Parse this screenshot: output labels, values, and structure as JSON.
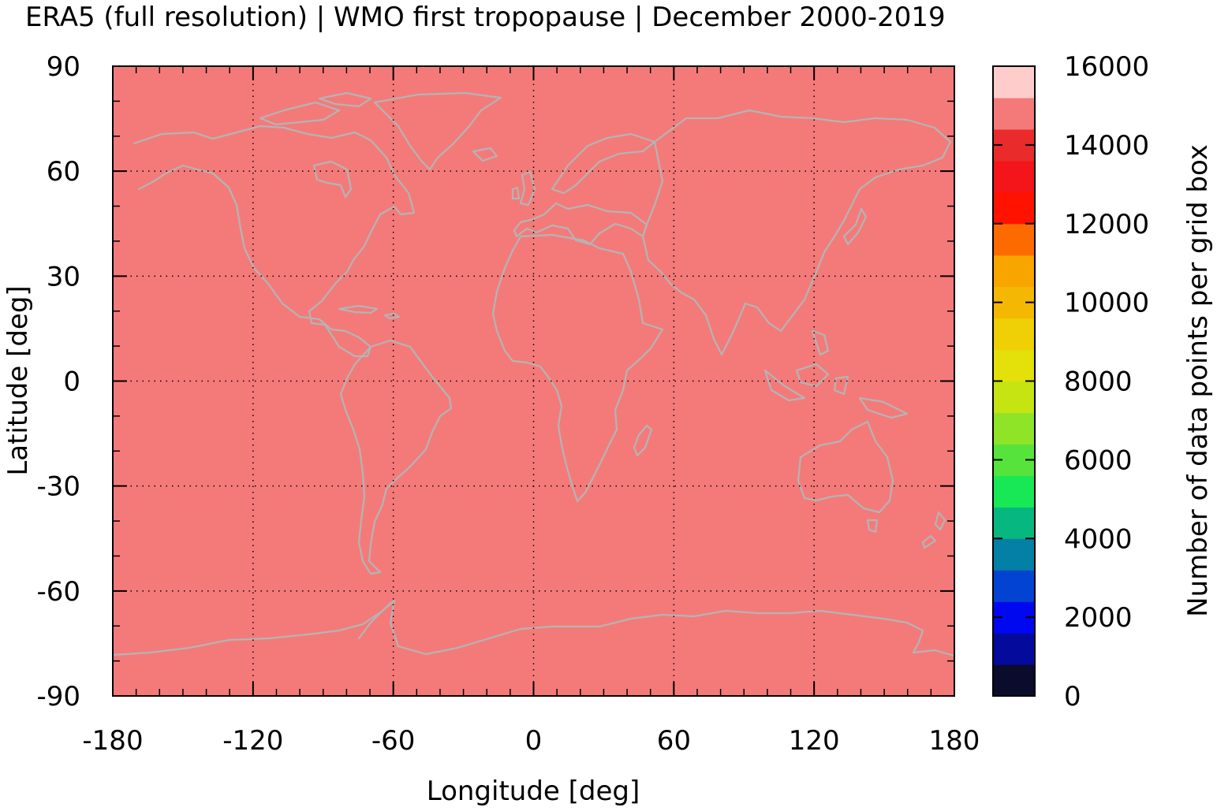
{
  "chart_data": {
    "type": "heatmap",
    "title": "ERA5 (full resolution) | WMO first tropopause | December 2000-2019",
    "xlabel": "Longitude [deg]",
    "ylabel": "Latitude [deg]",
    "xlim": [
      -180,
      180
    ],
    "ylim": [
      -90,
      90
    ],
    "x_ticks": [
      -180,
      -120,
      -60,
      0,
      60,
      120,
      180
    ],
    "y_ticks": [
      -90,
      -60,
      -30,
      0,
      30,
      60,
      90
    ],
    "x_tick_labels": [
      "-180",
      "-120",
      "-60",
      "0",
      "60",
      "120",
      "180"
    ],
    "y_tick_labels": [
      "-90",
      "-60",
      "-30",
      "0",
      "30",
      "60",
      "90"
    ],
    "grid": true,
    "background": "coastlines",
    "field": {
      "description_value": 14880,
      "uniform": true,
      "fill_color": "#f47a7a"
    },
    "colorbar": {
      "label": "Number of data points per grid box",
      "range": [
        0,
        16000
      ],
      "ticks": [
        0,
        2000,
        4000,
        6000,
        8000,
        10000,
        12000,
        14000,
        16000
      ],
      "tick_labels": [
        "0",
        "2000",
        "4000",
        "6000",
        "8000",
        "10000",
        "12000",
        "14000",
        "16000"
      ],
      "colors": [
        "#0b0b2b",
        "#040a9c",
        "#0008f0",
        "#0343d2",
        "#0480a7",
        "#07b780",
        "#19e856",
        "#56e43c",
        "#8fe428",
        "#c6e412",
        "#e3e00a",
        "#efcf05",
        "#f4b802",
        "#f8a500",
        "#fd6b00",
        "#ff1200",
        "#f3151a",
        "#ea2b2b",
        "#f47a7a",
        "#ffcccc"
      ]
    },
    "colors": {
      "coastline": "#b4b4b4",
      "grid": "#000000"
    }
  }
}
